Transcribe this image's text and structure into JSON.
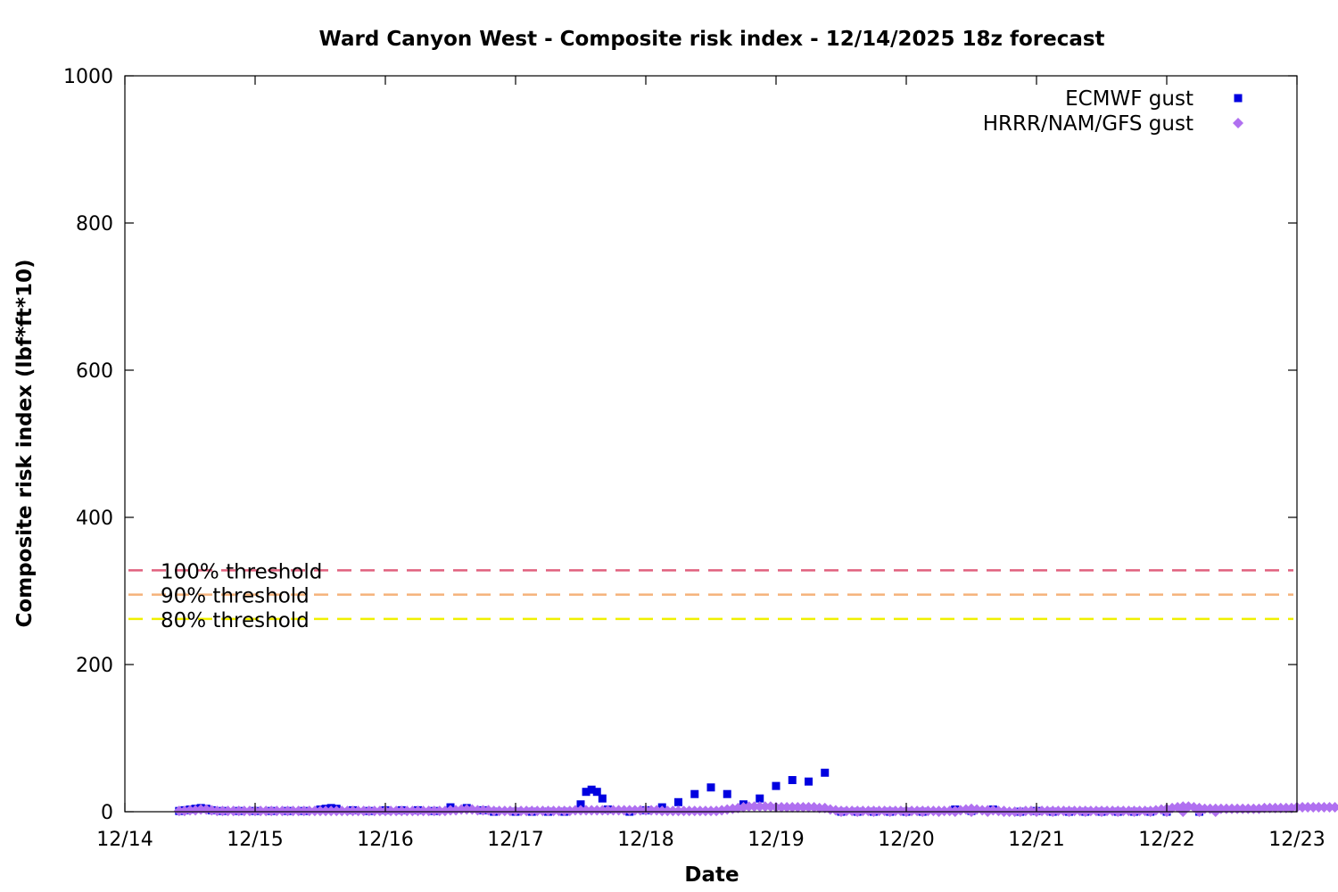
{
  "chart_data": {
    "type": "scatter",
    "title": "Ward Canyon West - Composite risk index - 12/14/2025 18z forecast",
    "xlabel": "Date",
    "ylabel": "Composite risk index (lbf*ft*10)",
    "xlim": [
      "12/14",
      "12/23"
    ],
    "ylim": [
      0,
      1000
    ],
    "x_ticks": [
      "12/14",
      "12/15",
      "12/16",
      "12/17",
      "12/18",
      "12/19",
      "12/20",
      "12/21",
      "12/22",
      "12/23"
    ],
    "y_ticks": [
      0,
      200,
      400,
      600,
      800,
      1000
    ],
    "grid": false,
    "legend_position": "top-right",
    "thresholds": [
      {
        "label": "100% threshold",
        "value": 328,
        "color": "#e0607e"
      },
      {
        "label": "90% threshold",
        "value": 295,
        "color": "#f5b27a"
      },
      {
        "label": "80% threshold",
        "value": 262,
        "color": "#f0f000"
      }
    ],
    "series": [
      {
        "name": "ECMWF gust",
        "marker": "square",
        "color": "#0000e0",
        "points": [
          [
            "12/14 10:00",
            1
          ],
          [
            "12/14 11:00",
            2
          ],
          [
            "12/14 12:00",
            3
          ],
          [
            "12/14 13:00",
            4
          ],
          [
            "12/14 14:00",
            5
          ],
          [
            "12/14 15:00",
            4
          ],
          [
            "12/14 16:00",
            2
          ],
          [
            "12/14 18:00",
            1
          ],
          [
            "12/14 21:00",
            1
          ],
          [
            "12/15 00:00",
            1
          ],
          [
            "12/15 03:00",
            1
          ],
          [
            "12/15 06:00",
            1
          ],
          [
            "12/15 09:00",
            1
          ],
          [
            "12/15 12:00",
            3
          ],
          [
            "12/15 13:00",
            4
          ],
          [
            "12/15 14:00",
            5
          ],
          [
            "12/15 15:00",
            4
          ],
          [
            "12/15 18:00",
            2
          ],
          [
            "12/15 21:00",
            1
          ],
          [
            "12/16 00:00",
            2
          ],
          [
            "12/16 03:00",
            2
          ],
          [
            "12/16 06:00",
            2
          ],
          [
            "12/16 09:00",
            1
          ],
          [
            "12/16 12:00",
            6
          ],
          [
            "12/16 15:00",
            5
          ],
          [
            "12/16 18:00",
            2
          ],
          [
            "12/16 20:00",
            0
          ],
          [
            "12/17 00:00",
            0
          ],
          [
            "12/17 03:00",
            0
          ],
          [
            "12/17 06:00",
            0
          ],
          [
            "12/17 09:00",
            0
          ],
          [
            "12/17 12:00",
            10
          ],
          [
            "12/17 13:00",
            27
          ],
          [
            "12/17 14:00",
            30
          ],
          [
            "12/17 15:00",
            27
          ],
          [
            "12/17 16:00",
            18
          ],
          [
            "12/17 17:00",
            3
          ],
          [
            "12/17 21:00",
            0
          ],
          [
            "12/18 00:00",
            2
          ],
          [
            "12/18 03:00",
            6
          ],
          [
            "12/18 06:00",
            13
          ],
          [
            "12/18 09:00",
            24
          ],
          [
            "12/18 12:00",
            33
          ],
          [
            "12/18 15:00",
            24
          ],
          [
            "12/18 18:00",
            10
          ],
          [
            "12/18 21:00",
            18
          ],
          [
            "12/19 00:00",
            35
          ],
          [
            "12/19 03:00",
            43
          ],
          [
            "12/19 06:00",
            41
          ],
          [
            "12/19 09:00",
            53
          ],
          [
            "12/19 12:00",
            0
          ],
          [
            "12/19 15:00",
            0
          ],
          [
            "12/19 18:00",
            0
          ],
          [
            "12/19 21:00",
            0
          ],
          [
            "12/20 00:00",
            0
          ],
          [
            "12/20 03:00",
            0
          ],
          [
            "12/20 09:00",
            3
          ],
          [
            "12/20 12:00",
            1
          ],
          [
            "12/20 16:00",
            3
          ],
          [
            "12/20 21:00",
            0
          ],
          [
            "12/21 00:00",
            1
          ],
          [
            "12/21 03:00",
            0
          ],
          [
            "12/21 06:00",
            0
          ],
          [
            "12/21 09:00",
            0
          ],
          [
            "12/21 12:00",
            0
          ],
          [
            "12/21 15:00",
            0
          ],
          [
            "12/21 18:00",
            0
          ],
          [
            "12/21 21:00",
            0
          ],
          [
            "12/22 00:00",
            0
          ],
          [
            "12/22 06:00",
            0
          ]
        ]
      },
      {
        "name": "HRRR/NAM/GFS gust",
        "marker": "diamond",
        "color": "#b070f0",
        "hourly_from": "12/14 10:00",
        "hourly_values": [
          1,
          1,
          2,
          2,
          3,
          3,
          2,
          1,
          1,
          1,
          1,
          1,
          1,
          1,
          1,
          1,
          1,
          1,
          1,
          1,
          1,
          1,
          1,
          1,
          1,
          1,
          1,
          1,
          1,
          1,
          1,
          1,
          1,
          1,
          1,
          1,
          1,
          1,
          1,
          1,
          1,
          1,
          1,
          1,
          1,
          1,
          1,
          1,
          1,
          1,
          2,
          2,
          3,
          3,
          3,
          2,
          2,
          2,
          1,
          1,
          1,
          1,
          1,
          1,
          1,
          1,
          1,
          1,
          1,
          1,
          1,
          1,
          1,
          2,
          2,
          2,
          2,
          2,
          2,
          2,
          2,
          2,
          2,
          2,
          2,
          2,
          2,
          2,
          2,
          1,
          1,
          1,
          1,
          1,
          1,
          1,
          1,
          1,
          1,
          1,
          2,
          3,
          4,
          5,
          6,
          7,
          7,
          7,
          7,
          7,
          6,
          6,
          6,
          6,
          6,
          6,
          6,
          6,
          5,
          5,
          3,
          2,
          1,
          1,
          1,
          1,
          1,
          1,
          1,
          1,
          1,
          1,
          1,
          1,
          1,
          1,
          1,
          1,
          1,
          1,
          1,
          1,
          1,
          1,
          2,
          3,
          4,
          3,
          2,
          2,
          2,
          1,
          1,
          0,
          0,
          0,
          1,
          1,
          1,
          1,
          1,
          1,
          1,
          1,
          1,
          1,
          1,
          1,
          1,
          1,
          1,
          1,
          1,
          1,
          1,
          1,
          1,
          1,
          1,
          1,
          2,
          3,
          4,
          5,
          6,
          7,
          7,
          6,
          5,
          4,
          4,
          4,
          4,
          4,
          4,
          4,
          4,
          4,
          4,
          4,
          5,
          5,
          5,
          5,
          5,
          5,
          6,
          6,
          6,
          6,
          6,
          6,
          6,
          6,
          6,
          6,
          7,
          8,
          9,
          10,
          11
        ],
        "points": [
          [
            "12/19 12:00",
            0
          ],
          [
            "12/19 15:00",
            0
          ],
          [
            "12/19 18:00",
            0
          ],
          [
            "12/19 21:00",
            0
          ],
          [
            "12/20 00:00",
            0
          ],
          [
            "12/20 03:00",
            0
          ],
          [
            "12/20 06:00",
            0
          ],
          [
            "12/20 09:00",
            0
          ],
          [
            "12/20 12:00",
            0
          ],
          [
            "12/20 15:00",
            0
          ],
          [
            "12/20 18:00",
            0
          ],
          [
            "12/20 21:00",
            0
          ],
          [
            "12/21 00:00",
            0
          ],
          [
            "12/21 03:00",
            0
          ],
          [
            "12/21 06:00",
            0
          ],
          [
            "12/21 09:00",
            0
          ],
          [
            "12/21 12:00",
            0
          ],
          [
            "12/21 15:00",
            0
          ],
          [
            "12/21 18:00",
            0
          ],
          [
            "12/21 21:00",
            0
          ],
          [
            "12/22 00:00",
            0
          ],
          [
            "12/22 03:00",
            0
          ],
          [
            "12/22 06:00",
            0
          ],
          [
            "12/22 09:00",
            0
          ]
        ]
      }
    ]
  }
}
